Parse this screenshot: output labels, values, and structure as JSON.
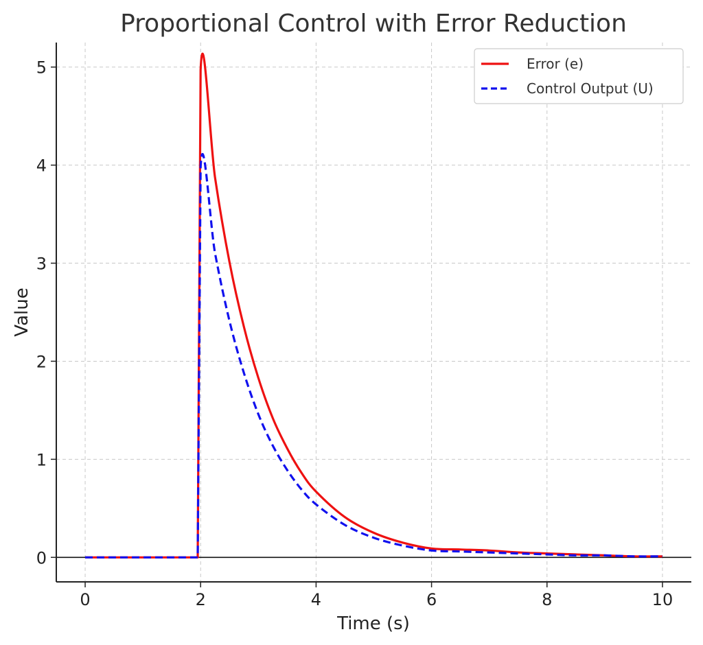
{
  "chart_data": {
    "type": "line",
    "title": "Proportional Control with Error Reduction",
    "xlabel": "Time (s)",
    "ylabel": "Value",
    "xlim": [
      -0.5,
      10.5
    ],
    "ylim": [
      -0.25,
      5.25
    ],
    "xticks": [
      0,
      2,
      4,
      6,
      8,
      10
    ],
    "yticks": [
      0,
      1,
      2,
      3,
      4,
      5
    ],
    "grid": true,
    "legend_position": "top-right",
    "zero_line": true,
    "series": [
      {
        "name": "Error (e)",
        "color": "#ee1111",
        "style": "solid",
        "x": [
          0,
          1.95,
          2.0,
          2.25,
          2.5,
          2.75,
          3.0,
          3.25,
          3.5,
          3.75,
          4.0,
          4.5,
          5.0,
          5.5,
          6.0,
          6.5,
          7.0,
          7.5,
          8.0,
          8.5,
          9.0,
          9.5,
          10.0
        ],
        "values": [
          0,
          0,
          4.97,
          3.87,
          3.01,
          2.35,
          1.83,
          1.42,
          1.11,
          0.86,
          0.67,
          0.41,
          0.25,
          0.15,
          0.09,
          0.08,
          0.07,
          0.05,
          0.04,
          0.03,
          0.02,
          0.01,
          0.01
        ]
      },
      {
        "name": "Control Output (U)",
        "color": "#1111ee",
        "style": "dashed",
        "x": [
          0,
          1.95,
          2.0,
          2.25,
          2.5,
          2.75,
          3.0,
          3.25,
          3.5,
          3.75,
          4.0,
          4.5,
          5.0,
          5.5,
          6.0,
          6.5,
          7.0,
          7.5,
          8.0,
          8.5,
          9.0,
          9.5,
          10.0
        ],
        "values": [
          0,
          0,
          3.98,
          3.1,
          2.41,
          1.88,
          1.46,
          1.14,
          0.89,
          0.69,
          0.54,
          0.33,
          0.2,
          0.12,
          0.07,
          0.06,
          0.05,
          0.04,
          0.03,
          0.02,
          0.02,
          0.01,
          0.01
        ]
      }
    ]
  }
}
